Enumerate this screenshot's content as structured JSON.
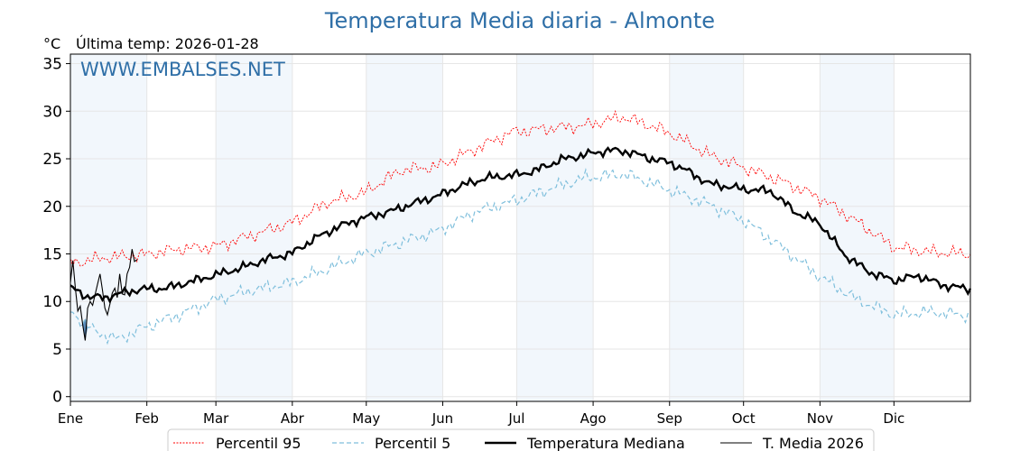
{
  "chart_data": {
    "type": "line",
    "title": "Temperatura Media diaria - Almonte",
    "ylabel": "°C",
    "subtitle": "Última temp: 2026-01-28",
    "watermark": "WWW.EMBALSES.NET",
    "ylim": [
      -0.5,
      36
    ],
    "xlim": [
      1,
      366
    ],
    "yticks": [
      0,
      5,
      10,
      15,
      20,
      25,
      30,
      35
    ],
    "months": [
      "Ene",
      "Feb",
      "Mar",
      "Abr",
      "May",
      "Jun",
      "Jul",
      "Ago",
      "Sep",
      "Oct",
      "Nov",
      "Dic"
    ],
    "month_start_days": [
      1,
      32,
      60,
      91,
      121,
      152,
      182,
      213,
      244,
      274,
      305,
      335
    ],
    "shaded_months": [
      "Ene",
      "Mar",
      "May",
      "Jul",
      "Sep",
      "Nov"
    ],
    "series": [
      {
        "name": "Percentil 95",
        "color": "#ff0000",
        "style": "dotted",
        "x": [
          1,
          15,
          30,
          45,
          60,
          75,
          91,
          105,
          120,
          135,
          150,
          165,
          180,
          195,
          210,
          225,
          235,
          245,
          260,
          275,
          290,
          305,
          320,
          335,
          350,
          366
        ],
        "values": [
          14.0,
          14.6,
          14.9,
          15.5,
          15.8,
          17.0,
          18.3,
          20.4,
          21.4,
          23.8,
          24.2,
          26.0,
          27.8,
          28.2,
          28.5,
          29.4,
          28.6,
          27.6,
          25.4,
          24.0,
          22.6,
          20.9,
          18.4,
          15.7,
          15.2,
          15.0
        ]
      },
      {
        "name": "Percentil 5",
        "color": "#7fbfdc",
        "style": "dashed",
        "x": [
          1,
          10,
          20,
          30,
          45,
          60,
          75,
          91,
          105,
          120,
          135,
          150,
          165,
          180,
          195,
          210,
          225,
          235,
          245,
          260,
          275,
          290,
          305,
          320,
          335,
          350,
          366
        ],
        "values": [
          9.0,
          7.0,
          6.0,
          7.2,
          8.6,
          10.2,
          11.2,
          12.0,
          13.4,
          15.0,
          16.2,
          17.4,
          19.4,
          20.5,
          21.8,
          23.0,
          23.4,
          22.6,
          21.6,
          20.2,
          18.4,
          15.6,
          12.6,
          10.2,
          8.6,
          8.9,
          8.5
        ]
      },
      {
        "name": "Temperatura Mediana",
        "color": "#000000",
        "style": "solid-thick",
        "x": [
          1,
          8,
          15,
          22,
          30,
          40,
          50,
          60,
          70,
          80,
          91,
          100,
          110,
          120,
          130,
          140,
          150,
          160,
          170,
          182,
          190,
          200,
          213,
          220,
          228,
          235,
          244,
          250,
          260,
          274,
          285,
          295,
          305,
          315,
          325,
          335,
          345,
          355,
          366
        ],
        "values": [
          11.5,
          10.5,
          10.4,
          10.9,
          11.3,
          11.4,
          12.1,
          12.8,
          13.5,
          14.4,
          15.1,
          16.6,
          17.9,
          18.8,
          19.4,
          20.3,
          21.1,
          22.2,
          23.0,
          23.3,
          23.8,
          24.9,
          25.6,
          25.9,
          25.7,
          25.1,
          24.6,
          23.9,
          22.4,
          21.8,
          21.6,
          19.4,
          18.2,
          14.9,
          13.1,
          12.2,
          12.7,
          11.7,
          11.3
        ]
      },
      {
        "name": "T. Media 2026",
        "color": "#000000",
        "style": "solid-thin",
        "x": [
          1,
          2,
          3,
          4,
          5,
          6,
          7,
          8,
          9,
          10,
          11,
          12,
          13,
          14,
          15,
          16,
          17,
          18,
          19,
          20,
          21,
          22,
          23,
          24,
          25,
          26,
          27,
          28
        ],
        "values": [
          12.0,
          14.3,
          11.4,
          9.0,
          9.5,
          7.5,
          5.9,
          9.3,
          10.0,
          9.6,
          10.7,
          11.8,
          12.9,
          11.2,
          9.3,
          8.6,
          9.7,
          10.9,
          11.4,
          10.4,
          12.9,
          10.8,
          10.7,
          12.9,
          13.6,
          15.5,
          14.2,
          14.4
        ]
      }
    ],
    "legend": [
      "Percentil 95",
      "Percentil 5",
      "Temperatura Mediana",
      "T. Media 2026"
    ],
    "legend_position": "bottom-center",
    "grid": true
  },
  "fill_colors": {
    "above_p95": "#f0a0a0",
    "below_p5": "#4a7fb5",
    "shade": "#f2f7fc"
  }
}
